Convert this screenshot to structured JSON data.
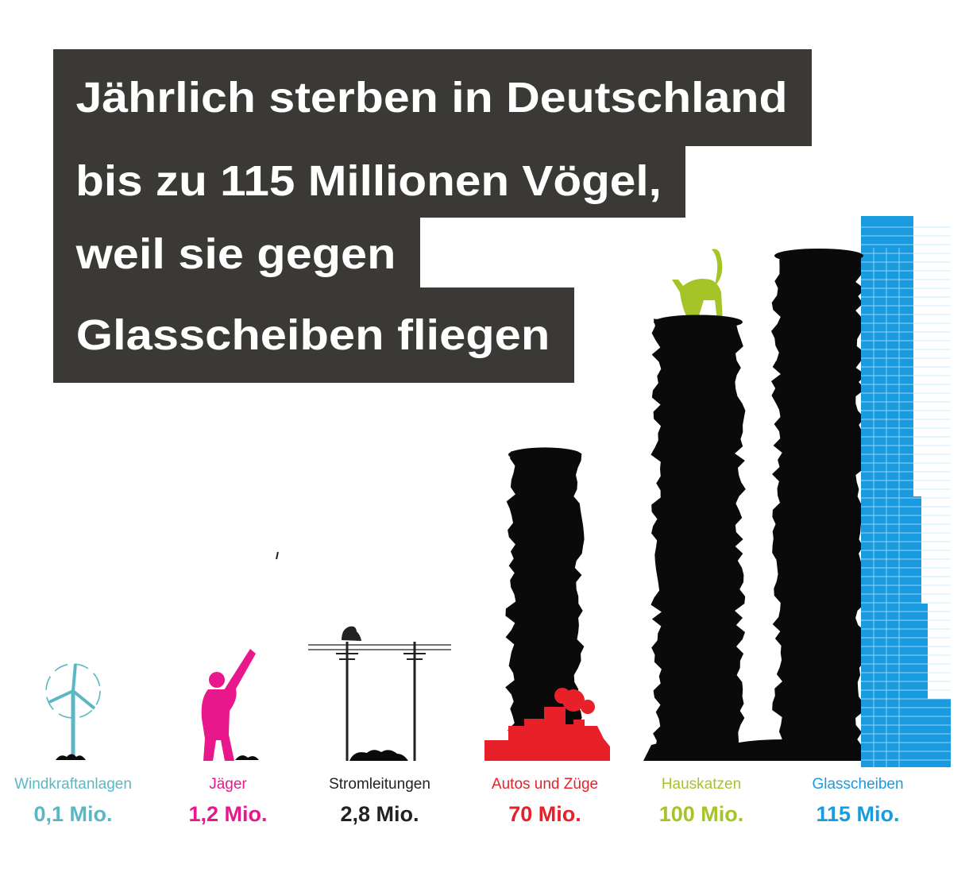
{
  "title_lines": [
    "Jährlich sterben in Deutschland",
    "bis zu 115 Millionen Vögel,",
    "weil sie gegen",
    "Glasscheiben fliegen"
  ],
  "colors": {
    "title_bg": "#3b3936",
    "windkraft": "#5bb7c4",
    "jaeger": "#e8188c",
    "strom": "#222222",
    "autos": "#e8202a",
    "katzen": "#a5c428",
    "glas": "#1a9be0",
    "birds": "#0a0a0a"
  },
  "chart_data": {
    "type": "bar",
    "unit": "Mio.",
    "categories": [
      "Windkraftanlagen",
      "Jäger",
      "Stromleitungen",
      "Autos und Züge",
      "Hauskatzen",
      "Glasscheiben"
    ],
    "values": [
      0.1,
      1.2,
      2.8,
      70,
      100,
      115
    ],
    "value_labels": [
      "0,1 Mio.",
      "1,2 Mio.",
      "2,8 Mio.",
      "70 Mio.",
      "100 Mio.",
      "115 Mio."
    ],
    "icons": [
      "wind-turbine-icon",
      "hunter-icon",
      "power-line-icon",
      "train-icon",
      "cat-icon",
      "glass-skyscraper-icon"
    ]
  }
}
